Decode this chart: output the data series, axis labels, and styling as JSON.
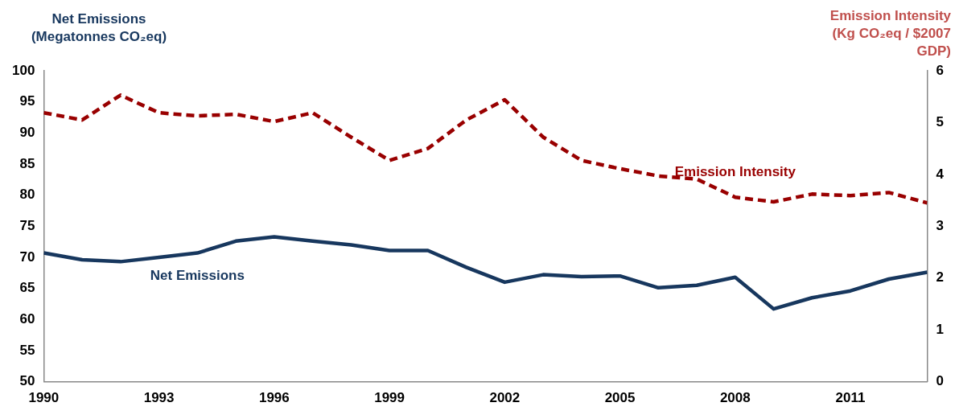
{
  "chart_data": {
    "type": "line",
    "ylabel": "Net Emissions (Megatonnes CO₂eq)",
    "y2label": "Emission Intensity (Kg CO₂eq / $2007 GDP)",
    "x": [
      1990,
      1991,
      1992,
      1993,
      1994,
      1995,
      1996,
      1997,
      1998,
      1999,
      2000,
      2001,
      2002,
      2003,
      2004,
      2005,
      2006,
      2007,
      2008,
      2009,
      2010,
      2011,
      2012,
      2013
    ],
    "xlim": [
      1990,
      2013
    ],
    "xticks": [
      1990,
      1993,
      1996,
      1999,
      2002,
      2005,
      2008,
      2011
    ],
    "ylim": [
      50,
      100
    ],
    "yticks": [
      50,
      55,
      60,
      65,
      70,
      75,
      80,
      85,
      90,
      95,
      100
    ],
    "y2lim": [
      0,
      6
    ],
    "y2ticks": [
      0,
      1,
      2,
      3,
      4,
      5,
      6
    ],
    "grid": false,
    "legend": false,
    "marker": "none",
    "series": [
      {
        "name": "Net Emissions",
        "color": "#17375e",
        "line_style": "solid",
        "values": [
          70.7,
          69.6,
          69.3,
          70.0,
          70.7,
          72.6,
          73.3,
          72.6,
          72.0,
          71.1,
          71.1,
          68.4,
          66.0,
          67.2,
          66.9,
          67.0,
          65.1,
          65.5,
          66.8,
          61.7,
          63.5,
          64.6,
          66.5,
          67.6
        ]
      },
      {
        "name": "Emission Intensity",
        "color": "#990000",
        "line_style": "dashed",
        "axis": "y2",
        "values": [
          5.19,
          5.05,
          5.53,
          5.19,
          5.13,
          5.16,
          5.02,
          5.19,
          4.72,
          4.27,
          4.5,
          5.05,
          5.44,
          4.72,
          4.27,
          4.11,
          3.97,
          3.91,
          3.56,
          3.47,
          3.62,
          3.59,
          3.65,
          3.45
        ]
      }
    ]
  }
}
